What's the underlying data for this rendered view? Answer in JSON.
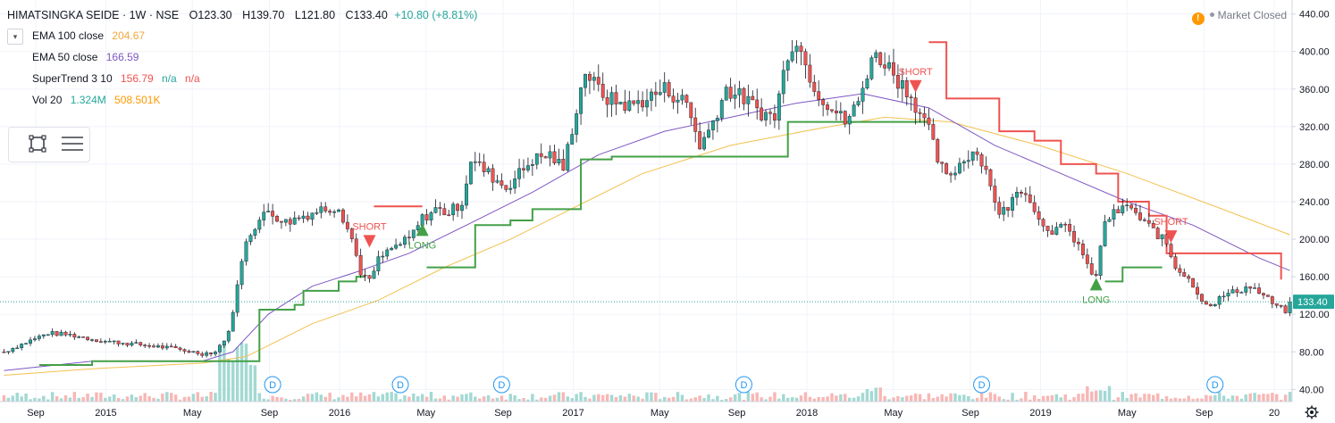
{
  "header": {
    "symbol": "HIMATSINGKA SEIDE · 1W · NSE",
    "open_label": "O",
    "open": "123.30",
    "high_label": "H",
    "high": "139.70",
    "low_label": "L",
    "low": "121.80",
    "close_label": "C",
    "close": "133.40",
    "change": "+10.80 (+8.81%)"
  },
  "indicators": [
    {
      "name": "EMA 100 close",
      "values": [
        "204.67"
      ],
      "colors": [
        "#f2a83b"
      ]
    },
    {
      "name": "EMA 50 close",
      "values": [
        "166.59"
      ],
      "colors": [
        "#7e57c2"
      ]
    },
    {
      "name": "SuperTrend 3 10",
      "values": [
        "156.79",
        "n/a",
        "n/a"
      ],
      "colors": [
        "#ef5350",
        "#26a69a",
        "#ef5350"
      ]
    },
    {
      "name": "Vol 20",
      "values": [
        "1.324M",
        "508.501K"
      ],
      "colors": [
        "#26a69a",
        "#ff9800"
      ]
    }
  ],
  "market_status": {
    "icon": "!",
    "text": "Market Closed"
  },
  "colors": {
    "up": "#26a69a",
    "down": "#ef5350",
    "ema100": "#f2c14e",
    "ema50": "#7e57c2",
    "st_up": "#43a047",
    "st_down": "#ef5350",
    "vol_up": "#a3d9d3",
    "vol_down": "#f7b7b5",
    "last_price": "#26a69a"
  },
  "chart_data": {
    "type": "candlestick",
    "title": "HIMATSINGKA SEIDE · 1W · NSE",
    "y_ticks": [
      40,
      80,
      120,
      160,
      200,
      240,
      280,
      320,
      360,
      400,
      440
    ],
    "y_tick_labels": [
      "40.00",
      "80.00",
      "120.00",
      "160.00",
      "200.00",
      "240.00",
      "280.00",
      "320.00",
      "360.00",
      "400.00",
      "440.00"
    ],
    "ylim": [
      27,
      453
    ],
    "last_price": 133.4,
    "last_price_label": "133.40",
    "x_ticks": [
      {
        "label": "Sep",
        "x": 0.0
      },
      {
        "label": "2015",
        "x": 0.3
      },
      {
        "label": "May",
        "x": 0.67
      },
      {
        "label": "Sep",
        "x": 1.0
      },
      {
        "label": "2016",
        "x": 1.3
      },
      {
        "label": "May",
        "x": 1.67
      },
      {
        "label": "Sep",
        "x": 2.0
      },
      {
        "label": "2017",
        "x": 2.3
      },
      {
        "label": "May",
        "x": 2.67
      },
      {
        "label": "Sep",
        "x": 3.0
      },
      {
        "label": "2018",
        "x": 3.3
      },
      {
        "label": "May",
        "x": 3.67
      },
      {
        "label": "Sep",
        "x": 4.0
      },
      {
        "label": "2019",
        "x": 4.3
      },
      {
        "label": "May",
        "x": 4.67
      },
      {
        "label": "Sep",
        "x": 5.0
      },
      {
        "label": "20",
        "x": 5.3
      }
    ],
    "price_path": [
      [
        0,
        80
      ],
      [
        5,
        90
      ],
      [
        10,
        100
      ],
      [
        15,
        98
      ],
      [
        22,
        92
      ],
      [
        30,
        88
      ],
      [
        38,
        84
      ],
      [
        45,
        78
      ],
      [
        48,
        80
      ],
      [
        51,
        100
      ],
      [
        53,
        150
      ],
      [
        55,
        200
      ],
      [
        57,
        215
      ],
      [
        60,
        230
      ],
      [
        64,
        218
      ],
      [
        68,
        225
      ],
      [
        72,
        232
      ],
      [
        76,
        235
      ],
      [
        79,
        200
      ],
      [
        81,
        165
      ],
      [
        83,
        155
      ],
      [
        85,
        178
      ],
      [
        88,
        190
      ],
      [
        92,
        200
      ],
      [
        95,
        222
      ],
      [
        98,
        232
      ],
      [
        101,
        228
      ],
      [
        104,
        240
      ],
      [
        106,
        285
      ],
      [
        110,
        270
      ],
      [
        114,
        255
      ],
      [
        118,
        275
      ],
      [
        120,
        285
      ],
      [
        124,
        290
      ],
      [
        127,
        275
      ],
      [
        130,
        340
      ],
      [
        132,
        380
      ],
      [
        134,
        365
      ],
      [
        137,
        350
      ],
      [
        142,
        342
      ],
      [
        146,
        350
      ],
      [
        150,
        360
      ],
      [
        155,
        345
      ],
      [
        158,
        300
      ],
      [
        160,
        315
      ],
      [
        164,
        360
      ],
      [
        168,
        350
      ],
      [
        172,
        335
      ],
      [
        175,
        330
      ],
      [
        178,
        400
      ],
      [
        180,
        415
      ],
      [
        182,
        385
      ],
      [
        185,
        355
      ],
      [
        188,
        340
      ],
      [
        191,
        325
      ],
      [
        194,
        345
      ],
      [
        197,
        395
      ],
      [
        200,
        390
      ],
      [
        203,
        370
      ],
      [
        205,
        360
      ],
      [
        208,
        335
      ],
      [
        210,
        315
      ],
      [
        212,
        285
      ],
      [
        214,
        265
      ],
      [
        217,
        280
      ],
      [
        220,
        295
      ],
      [
        222,
        285
      ],
      [
        224,
        260
      ],
      [
        226,
        225
      ],
      [
        228,
        235
      ],
      [
        231,
        255
      ],
      [
        233,
        245
      ],
      [
        235,
        220
      ],
      [
        238,
        210
      ],
      [
        241,
        212
      ],
      [
        244,
        195
      ],
      [
        246,
        170
      ],
      [
        248,
        160
      ],
      [
        250,
        220
      ],
      [
        253,
        230
      ],
      [
        256,
        235
      ],
      [
        258,
        220
      ],
      [
        261,
        210
      ],
      [
        264,
        195
      ],
      [
        266,
        170
      ],
      [
        269,
        160
      ],
      [
        271,
        140
      ],
      [
        274,
        130
      ],
      [
        277,
        140
      ],
      [
        280,
        145
      ],
      [
        283,
        150
      ],
      [
        286,
        140
      ],
      [
        289,
        128
      ],
      [
        291,
        124
      ],
      [
        292,
        133.4
      ]
    ],
    "n_bars": 293,
    "ema50_path": [
      [
        0,
        60
      ],
      [
        20,
        70
      ],
      [
        45,
        70
      ],
      [
        52,
        80
      ],
      [
        60,
        120
      ],
      [
        70,
        150
      ],
      [
        80,
        165
      ],
      [
        92,
        185
      ],
      [
        105,
        215
      ],
      [
        120,
        250
      ],
      [
        135,
        290
      ],
      [
        150,
        315
      ],
      [
        165,
        330
      ],
      [
        180,
        345
      ],
      [
        195,
        355
      ],
      [
        210,
        340
      ],
      [
        225,
        300
      ],
      [
        240,
        270
      ],
      [
        255,
        240
      ],
      [
        270,
        215
      ],
      [
        285,
        180
      ],
      [
        292,
        166.59
      ]
    ],
    "ema100_path": [
      [
        0,
        55
      ],
      [
        20,
        62
      ],
      [
        45,
        68
      ],
      [
        55,
        75
      ],
      [
        70,
        110
      ],
      [
        85,
        135
      ],
      [
        100,
        170
      ],
      [
        115,
        200
      ],
      [
        130,
        235
      ],
      [
        145,
        270
      ],
      [
        165,
        300
      ],
      [
        185,
        318
      ],
      [
        200,
        330
      ],
      [
        215,
        325
      ],
      [
        235,
        300
      ],
      [
        255,
        270
      ],
      [
        275,
        235
      ],
      [
        292,
        204.67
      ]
    ],
    "supertrend_segments": [
      {
        "trend": "up",
        "points": [
          [
            8,
            66
          ],
          [
            20,
            70
          ],
          [
            53,
            70
          ],
          [
            58,
            125
          ],
          [
            66,
            130
          ],
          [
            68,
            145
          ],
          [
            76,
            155
          ],
          [
            80,
            160
          ],
          [
            82,
            160
          ]
        ]
      },
      {
        "trend": "down",
        "points": [
          [
            84,
            235
          ],
          [
            95,
            235
          ]
        ]
      },
      {
        "trend": "up",
        "points": [
          [
            96,
            170
          ],
          [
            104,
            170
          ],
          [
            107,
            215
          ],
          [
            115,
            220
          ],
          [
            120,
            232
          ],
          [
            128,
            232
          ],
          [
            131,
            285
          ],
          [
            138,
            288
          ],
          [
            175,
            288
          ],
          [
            178,
            325
          ],
          [
            210,
            325
          ]
        ]
      },
      {
        "trend": "down",
        "points": [
          [
            210,
            410
          ],
          [
            214,
            350
          ],
          [
            222,
            350
          ],
          [
            226,
            315
          ],
          [
            234,
            305
          ],
          [
            240,
            280
          ],
          [
            248,
            270
          ],
          [
            253,
            240
          ],
          [
            260,
            225
          ],
          [
            264,
            185
          ],
          [
            285,
            185
          ],
          [
            290,
            157
          ]
        ]
      },
      {
        "trend": "up",
        "points": [
          [
            250,
            155
          ],
          [
            254,
            170
          ],
          [
            263,
            170
          ]
        ]
      }
    ],
    "signals": [
      {
        "type": "short",
        "label": "SHORT",
        "bar": 83,
        "price": 195
      },
      {
        "type": "long",
        "label": "LONG",
        "bar": 95,
        "price": 213
      },
      {
        "type": "short",
        "label": "SHORT",
        "bar": 207,
        "price": 360
      },
      {
        "type": "long",
        "label": "LONG",
        "bar": 248,
        "price": 155
      },
      {
        "type": "short",
        "label": "SHORT",
        "bar": 265,
        "price": 200
      }
    ],
    "dividend_markers": [
      {
        "label": "D",
        "bar": 61
      },
      {
        "label": "D",
        "bar": 90
      },
      {
        "label": "D",
        "bar": 113
      },
      {
        "label": "D",
        "bar": 168
      },
      {
        "label": "D",
        "bar": 222
      },
      {
        "label": "D",
        "bar": 275
      }
    ],
    "volume_ma_period": 20
  }
}
